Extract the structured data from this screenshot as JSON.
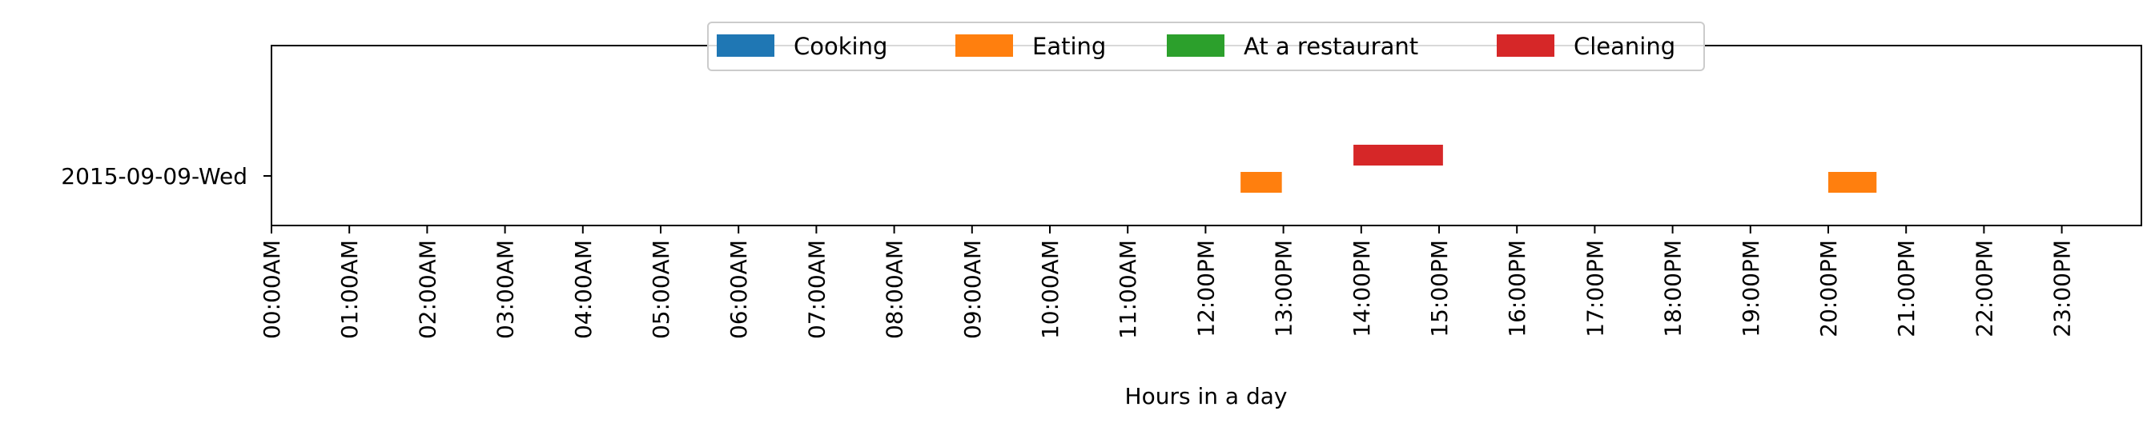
{
  "chart_data": {
    "type": "timeline",
    "xlabel": "Hours in a day",
    "ylabel": "",
    "xlim": [
      0,
      24
    ],
    "x_ticks": [
      "00:00AM",
      "01:00AM",
      "02:00AM",
      "03:00AM",
      "04:00AM",
      "05:00AM",
      "06:00AM",
      "07:00AM",
      "08:00AM",
      "09:00AM",
      "10:00AM",
      "11:00AM",
      "12:00PM",
      "13:00PM",
      "14:00PM",
      "15:00PM",
      "16:00PM",
      "17:00PM",
      "18:00PM",
      "19:00PM",
      "20:00PM",
      "21:00PM",
      "22:00PM",
      "23:00PM"
    ],
    "categories": [
      "2015-09-09-Wed"
    ],
    "legend": {
      "position": "top-center",
      "entries": [
        {
          "name": "Cooking",
          "color": "#1f77b4"
        },
        {
          "name": "Eating",
          "color": "#ff7f0e"
        },
        {
          "name": "At a restaurant",
          "color": "#2ca02c"
        },
        {
          "name": "Cleaning",
          "color": "#d62728"
        }
      ]
    },
    "series": [
      {
        "name": "Cooking",
        "color": "#1f77b4",
        "intervals": []
      },
      {
        "name": "Eating",
        "color": "#ff7f0e",
        "intervals": [
          {
            "day": "2015-09-09-Wed",
            "start": 12.45,
            "end": 12.98
          },
          {
            "day": "2015-09-09-Wed",
            "start": 20.0,
            "end": 20.62
          }
        ]
      },
      {
        "name": "At a restaurant",
        "color": "#2ca02c",
        "intervals": []
      },
      {
        "name": "Cleaning",
        "color": "#d62728",
        "intervals": [
          {
            "day": "2015-09-09-Wed",
            "start": 13.9,
            "end": 15.05
          }
        ]
      }
    ],
    "grid": false
  }
}
